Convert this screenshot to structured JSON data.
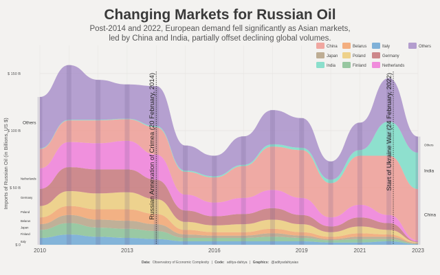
{
  "title": "Changing Markets for Russian Oil",
  "subtitle_line1": "Post-2014 and 2022, European demand fell significantly as Asian markets,",
  "subtitle_line2": "led by China and India, partially offset declining global volumes.",
  "caption": {
    "data_label": "Data:",
    "data_text": "Observatory of Economic Complexity",
    "code_label": "Code:",
    "code_text": "aditya-dahiya",
    "graphics_label": "Graphics:",
    "graphics_text": "@adityadahiyaias"
  },
  "colors": {
    "China": "#ee9a92",
    "Japan": "#b4a184",
    "India": "#78dcc6",
    "Belarus": "#f2a26b",
    "Poland": "#eccb78",
    "Finland": "#86bf92",
    "Italy": "#6aa6d3",
    "Germany": "#c57478",
    "Netherlands": "#ef7ad8",
    "Others": "#a78ec8"
  },
  "chart_data": {
    "type": "area",
    "subtype": "streamgraph",
    "ylabel": "Imports of Russian Oil (in Billions, US $)",
    "y_ticks": [
      "$ 150 B",
      "$ 100 B",
      "$ 50 B",
      "$ 0"
    ],
    "x_ticks": [
      "2010",
      "2013",
      "2016",
      "2019",
      "2021",
      "2023"
    ],
    "x": [
      2010,
      2011,
      2012,
      2013,
      2014,
      2015,
      2016,
      2017,
      2018,
      2019,
      2020,
      2021,
      2022,
      2023
    ],
    "ylim": [
      0,
      175
    ],
    "series": [
      {
        "name": "Italy",
        "values": [
          6,
          9,
          7,
          6,
          5,
          3,
          3,
          3,
          3,
          3,
          2,
          2,
          3,
          0.5
        ]
      },
      {
        "name": "Finland",
        "values": [
          7,
          10,
          8,
          8,
          7,
          3,
          3,
          3,
          4,
          3,
          2,
          3,
          2,
          0.3
        ]
      },
      {
        "name": "Japan",
        "values": [
          5,
          7,
          7,
          7,
          6,
          3,
          2,
          2,
          3,
          2,
          1,
          2,
          2,
          0.5
        ]
      },
      {
        "name": "Belarus",
        "values": [
          6,
          8,
          9,
          10,
          9,
          4,
          3,
          3,
          4,
          3,
          2,
          3,
          2,
          0.5
        ]
      },
      {
        "name": "Poland",
        "values": [
          10,
          13,
          14,
          15,
          13,
          7,
          6,
          7,
          8,
          7,
          4,
          6,
          4,
          0.5
        ]
      },
      {
        "name": "Germany",
        "values": [
          15,
          21,
          21,
          20,
          17,
          10,
          8,
          9,
          10,
          8,
          5,
          8,
          6,
          0.5
        ]
      },
      {
        "name": "Netherlands",
        "values": [
          18,
          22,
          23,
          25,
          22,
          14,
          12,
          14,
          16,
          15,
          8,
          11,
          7,
          1
        ]
      },
      {
        "name": "China",
        "values": [
          17,
          19,
          20,
          19,
          24,
          20,
          22,
          28,
          38,
          42,
          30,
          43,
          52,
          45
        ]
      },
      {
        "name": "India",
        "values": [
          0.5,
          0.5,
          0.5,
          0.5,
          1,
          1,
          1,
          1,
          2,
          2,
          3,
          5,
          30,
          32
        ]
      },
      {
        "name": "Others",
        "values": [
          45,
          48,
          35,
          30,
          35,
          22,
          18,
          25,
          30,
          26,
          16,
          24,
          38,
          14
        ]
      }
    ],
    "legend": [
      "China",
      "Belarus",
      "Italy",
      "Others",
      "Japan",
      "Poland",
      "Germany",
      "India",
      "Finland",
      "Netherlands"
    ],
    "legend_placement": "top-right",
    "left_labels": [
      "Others",
      "Netherlands",
      "Germany",
      "Poland",
      "Japan",
      "Finland",
      "Belarus",
      "Italy"
    ],
    "right_labels": [
      "China",
      "India",
      "Others"
    ],
    "annotations": [
      {
        "x": 2014.0,
        "text": "Russian Annexation of Crimea (20 February, 2014)"
      },
      {
        "x": 2022.15,
        "text": "Start of Ukraine War (24 February, 2022)"
      }
    ],
    "grid": true
  }
}
